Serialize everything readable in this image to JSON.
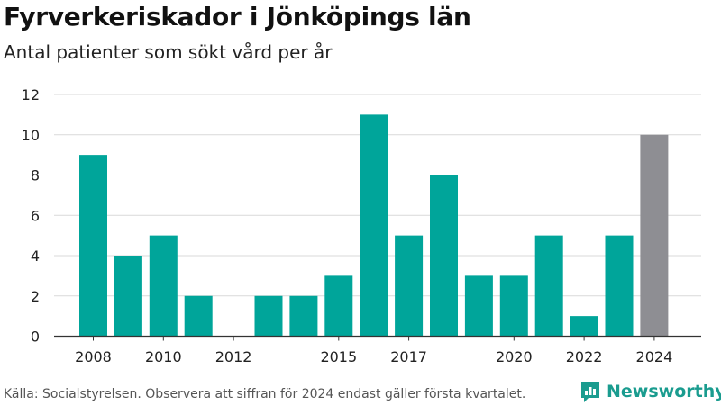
{
  "header": {
    "title": "Fyrverkeriskador i Jönköpings län",
    "subtitle": "Antal patienter som sökt vård per år"
  },
  "footer": {
    "source": "Källa: Socialstyrelsen. Observera att siffran för 2024 endast gäller första kvartalet.",
    "brand": "Newsworthy",
    "brand_icon": "bar-chart-logo-icon"
  },
  "colors": {
    "bar": "#00a59a",
    "highlight": "#8e8e93",
    "brand": "#1a9c8f"
  },
  "chart_data": {
    "type": "bar",
    "title": "Fyrverkeriskador i Jönköpings län",
    "subtitle": "Antal patienter som sökt vård per år",
    "categories": [
      2008,
      2009,
      2010,
      2011,
      2012,
      2013,
      2014,
      2015,
      2016,
      2017,
      2018,
      2019,
      2020,
      2021,
      2022,
      2023,
      2024
    ],
    "values": [
      9,
      4,
      5,
      2,
      0,
      2,
      2,
      3,
      11,
      5,
      8,
      3,
      3,
      5,
      1,
      5,
      10
    ],
    "highlight_category": 2024,
    "x_tick_labels": [
      "2008",
      "2010",
      "2012",
      "2015",
      "2017",
      "2020",
      "2022",
      "2024"
    ],
    "y_ticks": [
      0,
      2,
      4,
      6,
      8,
      10,
      12
    ],
    "ylim": [
      0,
      12
    ],
    "xlabel": "",
    "ylabel": "",
    "grid": true
  }
}
